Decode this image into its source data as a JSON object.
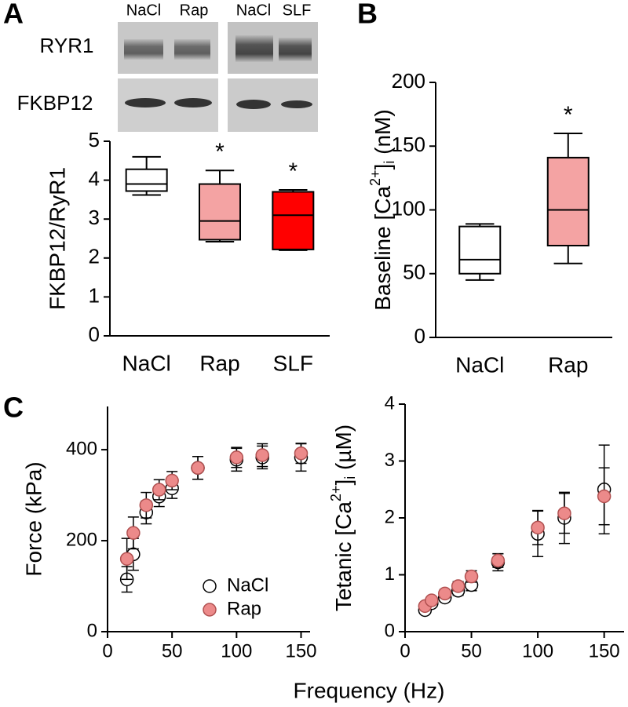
{
  "figure": {
    "panel_labels": [
      "A",
      "B",
      "C"
    ],
    "xlabel": "Frequency (Hz)",
    "blot": {
      "lanes": [
        "NaCl",
        "Rap",
        "NaCl",
        "SLF"
      ],
      "rows": [
        "RYR1",
        "FKBP12"
      ]
    }
  },
  "chart_data": [
    {
      "type": "box",
      "ylabel": "FKBP12/RyR1",
      "categories": [
        "NaCl",
        "Rap",
        "SLF"
      ],
      "boxes": [
        {
          "low": 3.62,
          "q1": 3.72,
          "median": 3.9,
          "q3": 4.28,
          "high": 4.6,
          "color": "#ffffff"
        },
        {
          "low": 2.42,
          "q1": 2.47,
          "median": 2.95,
          "q3": 3.9,
          "high": 4.25,
          "color": "#f4a3a3"
        },
        {
          "low": 2.2,
          "q1": 2.22,
          "median": 3.1,
          "q3": 3.7,
          "high": 3.75,
          "color": "#ff0000"
        }
      ],
      "annotations": [
        null,
        "*",
        "*"
      ],
      "ylim": [
        0,
        5
      ],
      "yticks": [
        0,
        1,
        2,
        3,
        4,
        5
      ]
    },
    {
      "type": "box",
      "ylabel_parts": [
        "Baseline [Ca",
        "2+",
        "]",
        "i",
        " (nM)"
      ],
      "categories": [
        "NaCl",
        "Rap"
      ],
      "boxes": [
        {
          "low": 45,
          "q1": 50,
          "median": 61,
          "q3": 87,
          "high": 89,
          "color": "#ffffff"
        },
        {
          "low": 58,
          "q1": 72,
          "median": 100,
          "q3": 141,
          "high": 160,
          "color": "#f4a3a3"
        }
      ],
      "annotations": [
        null,
        "*"
      ],
      "ylim": [
        0,
        200
      ],
      "yticks": [
        0,
        50,
        100,
        150,
        200
      ]
    },
    {
      "type": "scatter",
      "ylabel": "Force (kPa)",
      "x": [
        15,
        20,
        30,
        40,
        50,
        70,
        100,
        120,
        150
      ],
      "series": [
        {
          "name": "NaCl",
          "color": "#ffffff",
          "values": [
            115,
            170,
            262,
            297,
            315,
            360,
            378,
            383,
            383
          ],
          "errors": [
            28,
            35,
            25,
            22,
            22,
            25,
            25,
            25,
            30
          ]
        },
        {
          "name": "Rap",
          "color": "#ec8a8a",
          "values": [
            160,
            217,
            278,
            312,
            332,
            360,
            383,
            388,
            392
          ],
          "errors": [
            45,
            35,
            28,
            22,
            20,
            25,
            22,
            25,
            22
          ]
        }
      ],
      "legend": "lower-right",
      "xlim": [
        0,
        157
      ],
      "xticks": [
        0,
        50,
        100,
        150
      ],
      "ylim": [
        0,
        495
      ],
      "yticks": [
        0,
        200,
        400
      ]
    },
    {
      "type": "scatter",
      "ylabel_parts": [
        "Tetanic [Ca",
        "2+",
        "]",
        "i",
        " (µM)"
      ],
      "x": [
        15,
        20,
        30,
        40,
        50,
        70,
        100,
        120,
        150
      ],
      "series": [
        {
          "name": "NaCl",
          "color": "#ffffff",
          "values": [
            0.38,
            0.5,
            0.6,
            0.72,
            0.82,
            1.22,
            1.72,
            2.0,
            2.5
          ],
          "errors": [
            0.05,
            0.05,
            0.07,
            0.08,
            0.1,
            0.15,
            0.4,
            0.45,
            0.78
          ]
        },
        {
          "name": "Rap",
          "color": "#ec8a8a",
          "values": [
            0.45,
            0.55,
            0.67,
            0.8,
            0.97,
            1.25,
            1.83,
            2.08,
            2.38
          ],
          "errors": [
            0.05,
            0.05,
            0.07,
            0.08,
            0.1,
            0.12,
            0.3,
            0.35,
            0.5
          ]
        }
      ],
      "xlim": [
        0,
        165
      ],
      "xticks": [
        0,
        50,
        100,
        150
      ],
      "ylim": [
        0,
        4
      ],
      "yticks": [
        0,
        1,
        2,
        3,
        4
      ]
    }
  ]
}
